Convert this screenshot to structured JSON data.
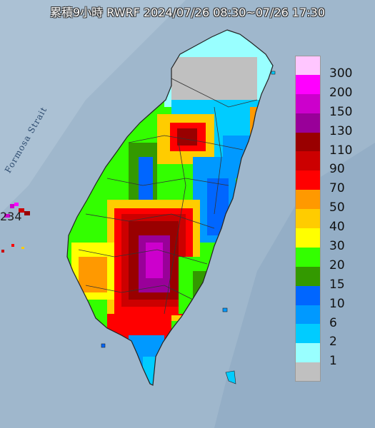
{
  "title": "累積9小時 RWRF 2024/07/26 08:30~07/26 17:30",
  "strait_label": "Formosa Strait",
  "island_label": "234",
  "legend": {
    "items": [
      {
        "label": "300",
        "color": "#ffc6ff"
      },
      {
        "label": "200",
        "color": "#ff00ff"
      },
      {
        "label": "150",
        "color": "#cc00cc"
      },
      {
        "label": "130",
        "color": "#990099"
      },
      {
        "label": "110",
        "color": "#990000"
      },
      {
        "label": "90",
        "color": "#cc0000"
      },
      {
        "label": "70",
        "color": "#ff0000"
      },
      {
        "label": "50",
        "color": "#ff9900"
      },
      {
        "label": "40",
        "color": "#ffcc00"
      },
      {
        "label": "30",
        "color": "#ffff00"
      },
      {
        "label": "20",
        "color": "#33ff00"
      },
      {
        "label": "15",
        "color": "#339900"
      },
      {
        "label": "10",
        "color": "#0066ff"
      },
      {
        "label": "6",
        "color": "#0099ff"
      },
      {
        "label": "2",
        "color": "#00ccff"
      },
      {
        "label": "1",
        "color": "#99ffff"
      },
      {
        "label": "",
        "color": "#c0c0c0"
      }
    ]
  },
  "colors": {
    "sea": "#9fb7cc",
    "land_outline": "#222222"
  }
}
